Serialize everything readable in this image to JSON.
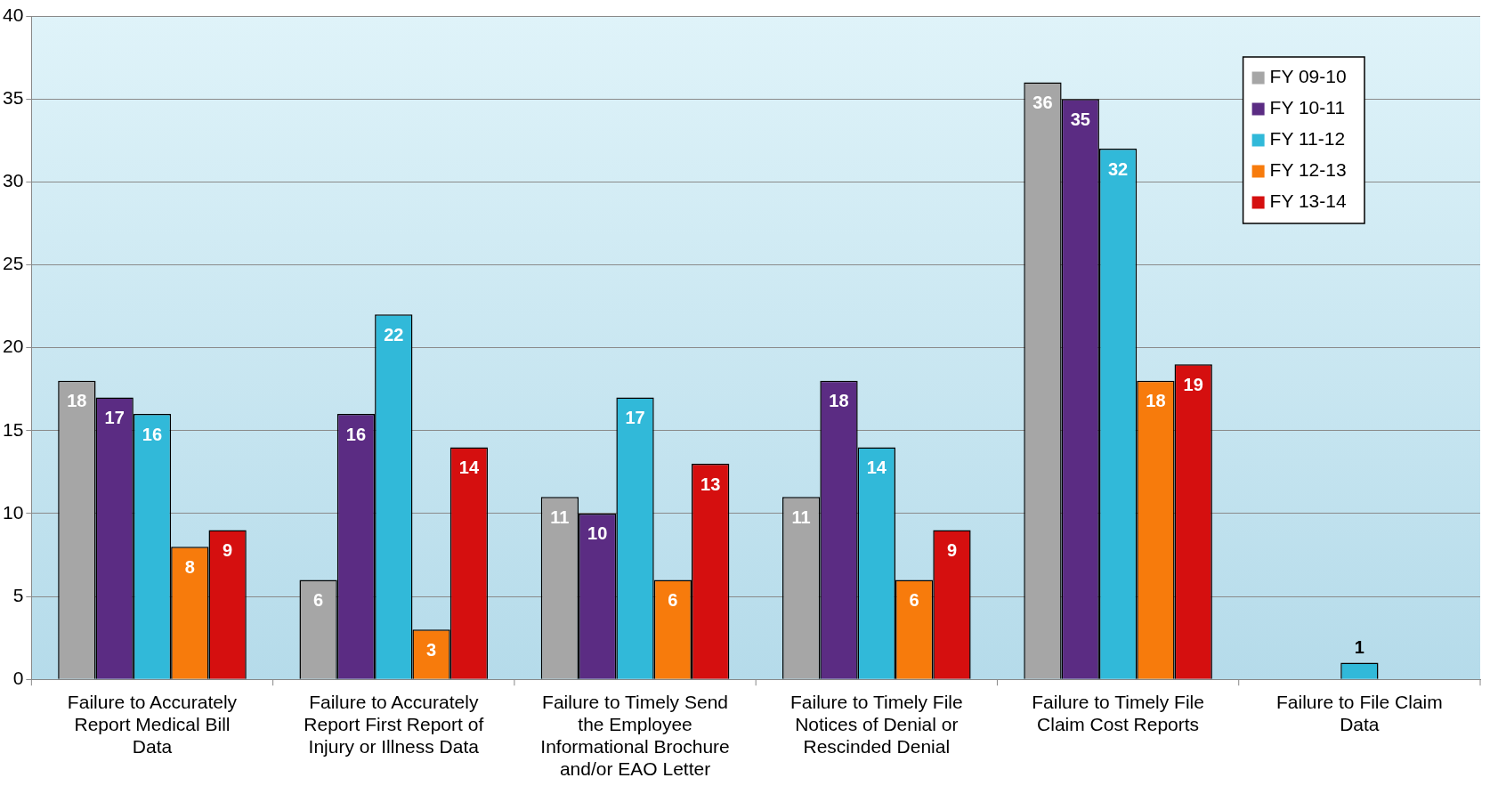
{
  "chart_data": {
    "type": "bar",
    "categories": [
      "Failure to Accurately Report Medical Bill Data",
      "Failure to Accurately Report First Report of Injury or Illness Data",
      "Failure to Timely Send the Employee Informational Brochure and/or EAO Letter",
      "Failure to Timely File Notices of Denial or Rescinded Denial",
      "Failure to Timely File Claim Cost Reports",
      "Failure to File Claim Data"
    ],
    "series": [
      {
        "name": "FY 09-10",
        "color": "#a6a6a6",
        "values": [
          18,
          6,
          11,
          11,
          36,
          null
        ]
      },
      {
        "name": "FY 10-11",
        "color": "#5b2c83",
        "values": [
          17,
          16,
          10,
          18,
          35,
          null
        ]
      },
      {
        "name": "FY 11-12",
        "color": "#31b9d9",
        "values": [
          16,
          22,
          17,
          14,
          32,
          1
        ]
      },
      {
        "name": "FY 12-13",
        "color": "#f77b0c",
        "values": [
          8,
          3,
          6,
          6,
          18,
          null
        ]
      },
      {
        "name": "FY 13-14",
        "color": "#d50f0f",
        "values": [
          9,
          14,
          13,
          9,
          19,
          null
        ]
      }
    ],
    "ylim": [
      0,
      40
    ],
    "yticks": [
      0,
      5,
      10,
      15,
      20,
      25,
      30,
      35,
      40
    ],
    "grid": "y",
    "legend": "top right",
    "data_labels": true
  }
}
